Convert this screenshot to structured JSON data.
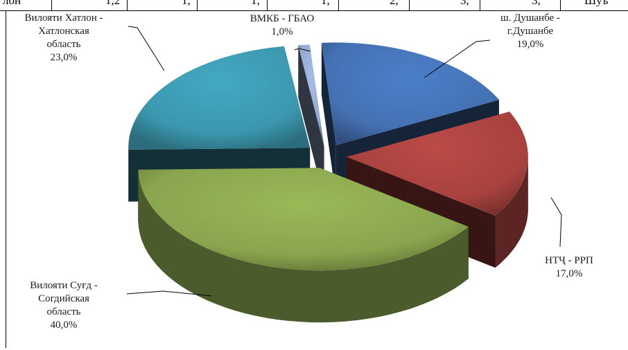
{
  "table_fragment": {
    "cells": [
      "лон",
      "1,2",
      "1,",
      "1,",
      "1,",
      "2,",
      "3,",
      "3,",
      "Шуъ"
    ]
  },
  "chart_data": {
    "type": "pie",
    "subtype": "3d-exploded",
    "slices": [
      {
        "label_lines": [
          "ш. Душанбе -",
          "г.Душанбе"
        ],
        "value": 19.0,
        "value_label": "19,0%",
        "color": "#4471b3"
      },
      {
        "label_lines": [
          "НТҶ - РРП"
        ],
        "value": 17.0,
        "value_label": "17,0%",
        "color": "#a8423f"
      },
      {
        "label_lines": [
          "Вилояти Суғд -",
          "Согдийская",
          "область"
        ],
        "value": 40.0,
        "value_label": "40,0%",
        "color": "#89a54e"
      },
      {
        "label_lines": [
          "Вилояти Хатлон -",
          "Хатлонская",
          "область"
        ],
        "value": 23.0,
        "value_label": "23,0%",
        "color": "#3c97ae"
      },
      {
        "label_lines": [
          "ВМКБ - ГБАО"
        ],
        "value": 1.0,
        "value_label": "1,0%",
        "color": "#93a9cf"
      }
    ]
  }
}
